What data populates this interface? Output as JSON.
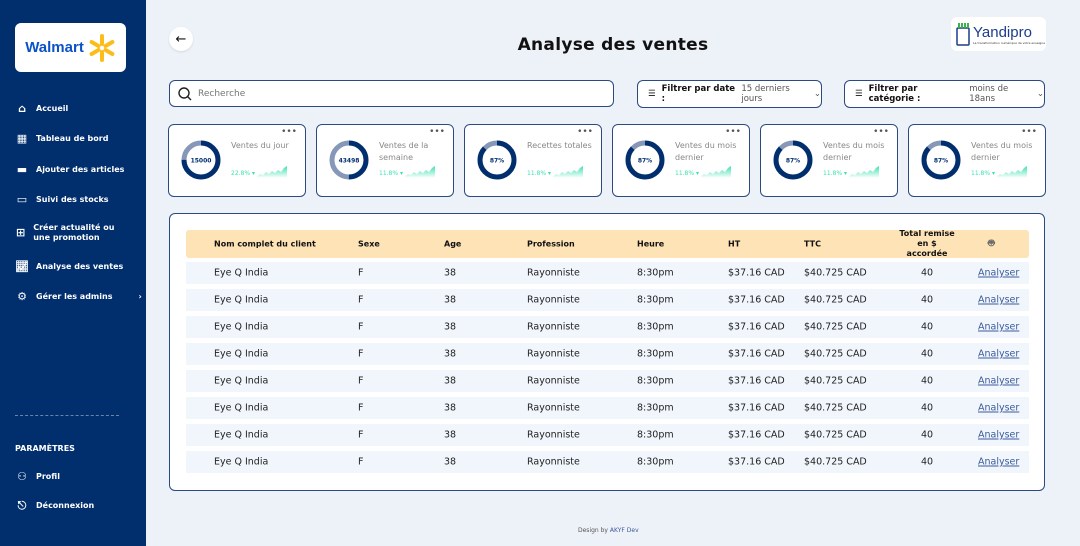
{
  "sidebar": {
    "brand": "Walmart",
    "items": [
      {
        "label": "Accueil",
        "icon": "home-icon"
      },
      {
        "label": "Tableau de bord",
        "icon": "dashboard-icon"
      },
      {
        "label": "Ajouter des articles",
        "icon": "add-article-icon"
      },
      {
        "label": "Suivi des stocks",
        "icon": "stock-icon"
      },
      {
        "label": "Créer actualité ou une promotion",
        "icon": "promotion-icon"
      },
      {
        "label": "Analyse des ventes",
        "icon": "chart-icon"
      },
      {
        "label": "Gérer les admins",
        "icon": "gear-icon"
      }
    ],
    "settings_title": "PARAMÈTRES",
    "profile": "Profil",
    "logout": "Déconnexion"
  },
  "header": {
    "title": "Analyse des ventes",
    "partner_logo": "Yandipro",
    "partner_tagline": "La transformation numérique de votre enseigne"
  },
  "search": {
    "placeholder": "Recherche"
  },
  "filters": {
    "date_label": "Filtrer par date :",
    "date_value": "15 derniers jours",
    "category_label": "Filtrer par catégorie :",
    "category_value": "moins de 18ans"
  },
  "cards": [
    {
      "value": "15000",
      "label": "Ventes du jour",
      "change": "22.8%",
      "fill": 0.75
    },
    {
      "value": "43498",
      "label": "Ventes de la semaine",
      "change": "11.8%",
      "fill": 0.5
    },
    {
      "value": "87%",
      "label": "Recettes totales",
      "change": "11.8%",
      "fill": 0.87
    },
    {
      "value": "87%",
      "label": "Ventes du mois dernier",
      "change": "11.8%",
      "fill": 0.87
    },
    {
      "value": "87%",
      "label": "Ventes du mois dernier",
      "change": "11.8%",
      "fill": 0.87
    },
    {
      "value": "87%",
      "label": "Ventes du mois dernier",
      "change": "11.8%",
      "fill": 0.87
    }
  ],
  "colors": {
    "sidebar": "#012e6d",
    "accent": "#012e6d",
    "header_row": "#fde3b6",
    "positive": "#3ee0b0"
  },
  "table": {
    "headers": [
      "Nom complet du client",
      "Sexe",
      "Age",
      "Profession",
      "Heure",
      "HT",
      "TTC",
      "Total remise en $ accordée"
    ],
    "action_icon": "robot-icon",
    "rows": [
      [
        "Eye Q India",
        "F",
        "38",
        "Rayonniste",
        "8:30pm",
        "$37.16 CAD",
        "$40.725 CAD",
        "40",
        "Analyser"
      ],
      [
        "Eye Q India",
        "F",
        "38",
        "Rayonniste",
        "8:30pm",
        "$37.16 CAD",
        "$40.725 CAD",
        "40",
        "Analyser"
      ],
      [
        "Eye Q India",
        "F",
        "38",
        "Rayonniste",
        "8:30pm",
        "$37.16 CAD",
        "$40.725 CAD",
        "40",
        "Analyser"
      ],
      [
        "Eye Q India",
        "F",
        "38",
        "Rayonniste",
        "8:30pm",
        "$37.16 CAD",
        "$40.725 CAD",
        "40",
        "Analyser"
      ],
      [
        "Eye Q India",
        "F",
        "38",
        "Rayonniste",
        "8:30pm",
        "$37.16 CAD",
        "$40.725 CAD",
        "40",
        "Analyser"
      ],
      [
        "Eye Q India",
        "F",
        "38",
        "Rayonniste",
        "8:30pm",
        "$37.16 CAD",
        "$40.725 CAD",
        "40",
        "Analyser"
      ],
      [
        "Eye Q India",
        "F",
        "38",
        "Rayonniste",
        "8:30pm",
        "$37.16 CAD",
        "$40.725 CAD",
        "40",
        "Analyser"
      ],
      [
        "Eye Q India",
        "F",
        "38",
        "Rayonniste",
        "8:30pm",
        "$37.16 CAD",
        "$40.725 CAD",
        "40",
        "Analyser"
      ]
    ]
  },
  "footer": {
    "prefix": "Design by",
    "author": "AKYF Dev"
  }
}
